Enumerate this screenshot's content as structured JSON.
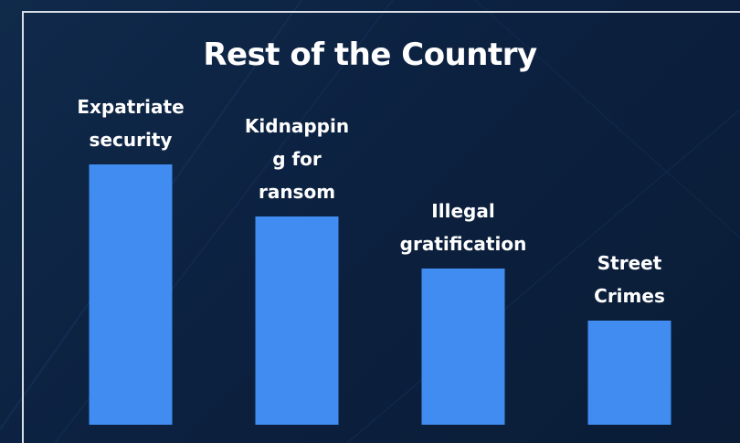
{
  "chart_data": {
    "type": "bar",
    "title": "Rest of the Country",
    "categories": [
      "Expatriate security",
      "Kidnapping for ransom",
      "Illegal gratification",
      "Street Crimes"
    ],
    "label_lines": [
      [
        "Expatriate",
        "security"
      ],
      [
        "Kidnappin",
        "g for",
        "ransom"
      ],
      [
        "Illegal",
        "gratification"
      ],
      [
        "Street",
        "Crimes"
      ]
    ],
    "values": [
      100,
      80,
      60,
      40
    ],
    "ylim": [
      0,
      100
    ],
    "bar_color": "#418cf0",
    "xlabel": "",
    "ylabel": "",
    "grid": false,
    "legend": "none"
  }
}
